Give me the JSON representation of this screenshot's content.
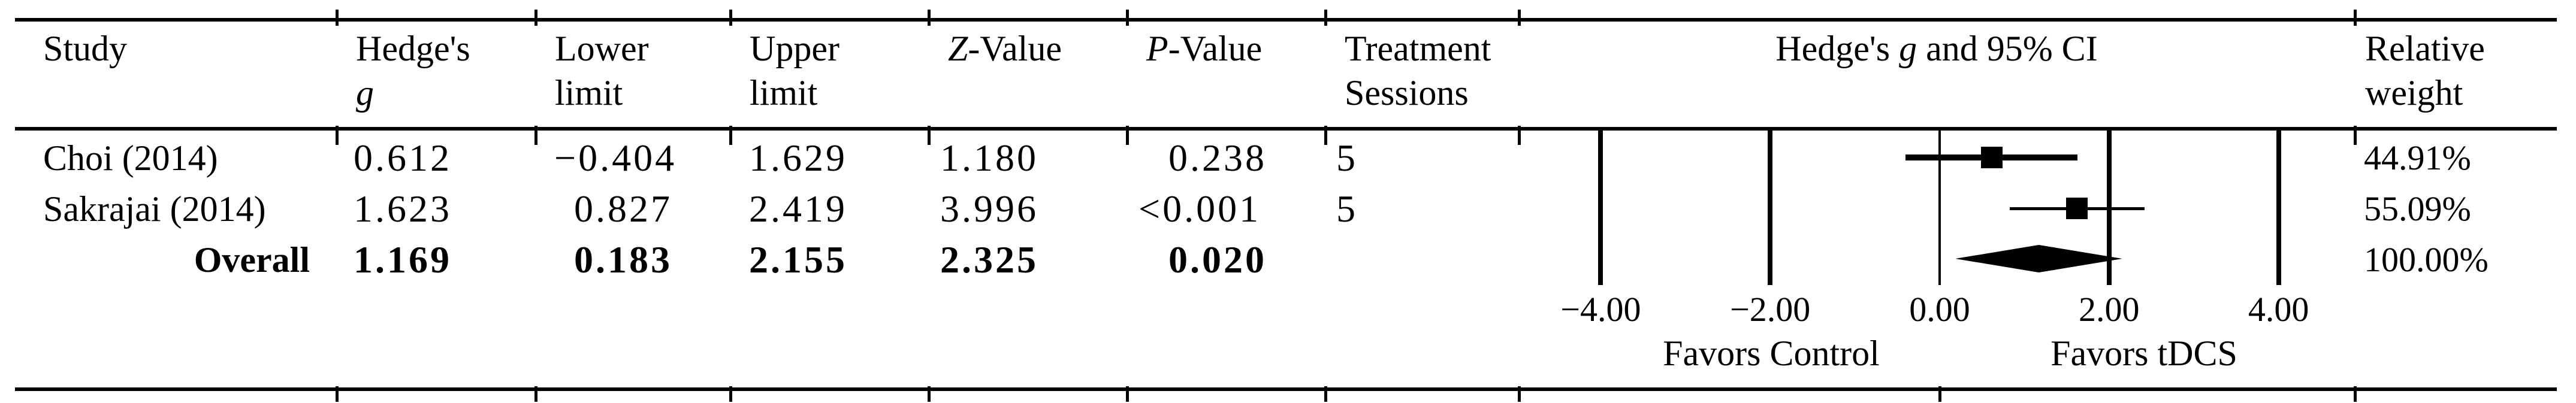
{
  "header": {
    "study": "Study",
    "hedges_g": {
      "line1": "Hedge's",
      "line2": "g"
    },
    "lower": {
      "line1": "Lower",
      "line2": "limit"
    },
    "upper": {
      "line1": "Upper",
      "line2": "limit"
    },
    "z": {
      "italic": "Z",
      "rest": "-Value"
    },
    "p": {
      "italic": "P",
      "rest": "-Value"
    },
    "sessions": {
      "line1": "Treatment",
      "line2": "Sessions"
    },
    "ci": {
      "pre": "Hedge's ",
      "italic": "g",
      "post": " and 95% CI"
    },
    "weight": {
      "line1": "Relative",
      "line2": "weight"
    }
  },
  "table": {
    "rows": [
      {
        "study": "Choi (2014)",
        "g": "0.612",
        "lower": "−0.404",
        "upper": "1.629",
        "z": "1.180",
        "p": "0.238",
        "sessions": "5",
        "weight": "44.91%"
      },
      {
        "study": "Sakrajai (2014)",
        "g": "1.623",
        "lower": "0.827",
        "upper": "2.419",
        "z": "3.996",
        "p": "<0.001",
        "sessions": "5",
        "weight": "55.09%"
      },
      {
        "study": "Overall",
        "g": "1.169",
        "lower": "0.183",
        "upper": "2.155",
        "z": "2.325",
        "p": "0.020",
        "sessions": "",
        "weight": "100.00%"
      }
    ]
  },
  "chart_data": {
    "type": "scatter",
    "subtype": "forest-plot",
    "title": "Hedge's g and 95% CI",
    "xlim": [
      -4.96,
      4.9
    ],
    "axis_tick_values": [
      -4,
      -2,
      0,
      2,
      4
    ],
    "axis_tick_labels": [
      "−4.00",
      "−2.00",
      "0.00",
      "2.00",
      "4.00"
    ],
    "favors_left": "Favors Control",
    "favors_right": "Favors tDCS",
    "studies": [
      {
        "name": "Choi (2014)",
        "g": 0.612,
        "lower": -0.404,
        "upper": 1.629,
        "z": 1.18,
        "p": "0.238",
        "treatment_sessions": 5,
        "relative_weight_pct": 44.91
      },
      {
        "name": "Sakrajai (2014)",
        "g": 1.623,
        "lower": 0.827,
        "upper": 2.419,
        "z": 3.996,
        "p": "<0.001",
        "treatment_sessions": 5,
        "relative_weight_pct": 55.09
      }
    ],
    "overall": {
      "name": "Overall",
      "g": 1.169,
      "lower": 0.183,
      "upper": 2.155,
      "z": 2.325,
      "p": "0.020",
      "relative_weight_pct": 100.0
    }
  }
}
